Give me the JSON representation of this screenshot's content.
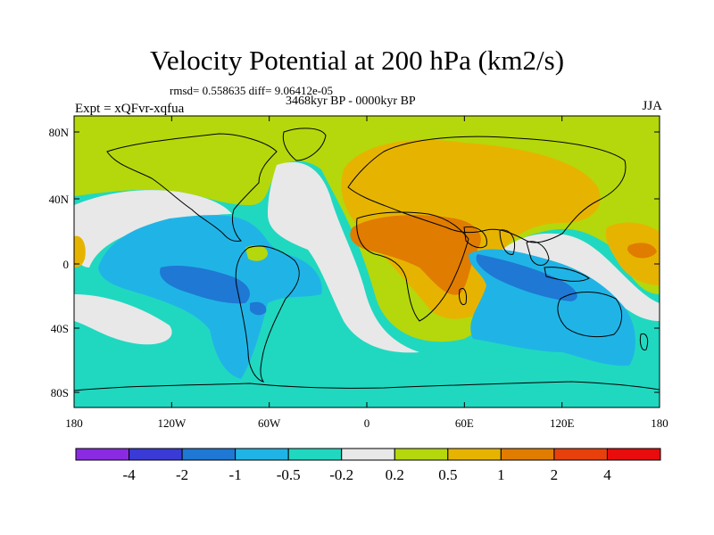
{
  "title": "Velocity Potential at 200 hPa (km2/s)",
  "subtitle": "rmsd= 0.558635 diff= 9.06412e-05",
  "period": "3468kyr BP - 0000kyr BP",
  "experiment": "Expt = xQFvr-xqfua",
  "season": "JJA",
  "y_ticks": [
    "80N",
    "40N",
    "0",
    "40S",
    "80S"
  ],
  "x_ticks": [
    "180",
    "120W",
    "60W",
    "0",
    "60E",
    "120E",
    "180"
  ],
  "colorbar": {
    "labels": [
      "-4",
      "-2",
      "-1",
      "-0.5",
      "-0.2",
      "0.2",
      "0.5",
      "1",
      "2",
      "4"
    ],
    "colors": [
      "#8a2be2",
      "#3a3ad6",
      "#1e78d4",
      "#20b4e6",
      "#20d8c0",
      "#e8e8e8",
      "#b4d80c",
      "#e6b400",
      "#e07c00",
      "#e8400c",
      "#e80c0c"
    ]
  },
  "field_colors": {
    "background": "#20d8c0",
    "neutral": "#e8e8e8",
    "pos_low": "#b4d80c",
    "pos_mid": "#e6b400",
    "pos_high": "#e07c00",
    "neg_low": "#20b4e6",
    "neg_mid": "#1e78d4"
  }
}
